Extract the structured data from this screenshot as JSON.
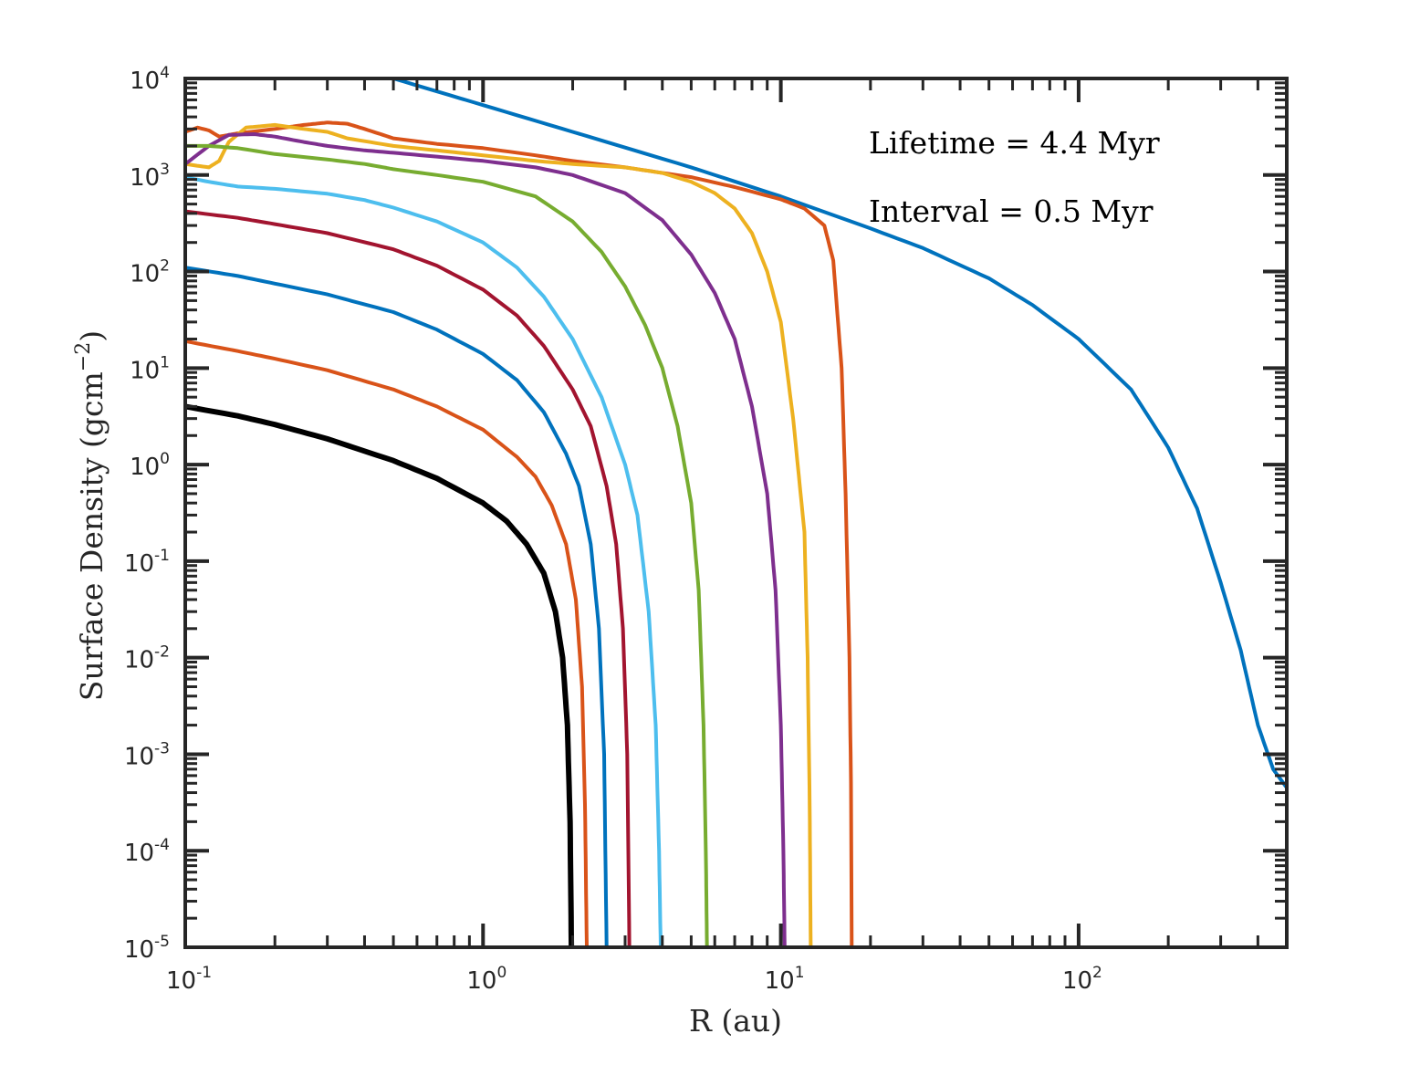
{
  "chart_data": {
    "type": "line",
    "xlabel": "R (au)",
    "ylabel": "Surface Density (gcm",
    "ylabel_exp": "−2",
    "ylabel_close": ")",
    "x_scale": "log",
    "y_scale": "log",
    "xlim": [
      0.1,
      500
    ],
    "ylim": [
      1e-05,
      10000
    ],
    "x_ticks": [
      {
        "base": "10",
        "exp": "-1",
        "value": 0.1
      },
      {
        "base": "10",
        "exp": "0",
        "value": 1
      },
      {
        "base": "10",
        "exp": "1",
        "value": 10
      },
      {
        "base": "10",
        "exp": "2",
        "value": 100
      }
    ],
    "y_ticks": [
      {
        "base": "10",
        "exp": "-5",
        "value": 1e-05
      },
      {
        "base": "10",
        "exp": "-4",
        "value": 0.0001
      },
      {
        "base": "10",
        "exp": "-3",
        "value": 0.001
      },
      {
        "base": "10",
        "exp": "-2",
        "value": 0.01
      },
      {
        "base": "10",
        "exp": "-1",
        "value": 0.1
      },
      {
        "base": "10",
        "exp": "0",
        "value": 1
      },
      {
        "base": "10",
        "exp": "1",
        "value": 10
      },
      {
        "base": "10",
        "exp": "2",
        "value": 100
      },
      {
        "base": "10",
        "exp": "3",
        "value": 1000
      },
      {
        "base": "10",
        "exp": "4",
        "value": 10000
      }
    ],
    "annotations": [
      "Lifetime = 4.4 Myr",
      "Interval = 0.5 Myr"
    ],
    "grid": false,
    "series": [
      {
        "color": "#0072BD",
        "width": 4,
        "points": [
          [
            0.5,
            10000
          ],
          [
            1,
            5300
          ],
          [
            2,
            2800
          ],
          [
            5,
            1200
          ],
          [
            10,
            600
          ],
          [
            20,
            280
          ],
          [
            30,
            175
          ],
          [
            50,
            85
          ],
          [
            70,
            45
          ],
          [
            100,
            20
          ],
          [
            150,
            6
          ],
          [
            200,
            1.5
          ],
          [
            250,
            0.35
          ],
          [
            300,
            0.06
          ],
          [
            350,
            0.012
          ],
          [
            400,
            0.002
          ],
          [
            450,
            0.0007
          ],
          [
            500,
            0.00045
          ]
        ]
      },
      {
        "color": "#D95319",
        "width": 4,
        "points": [
          [
            0.1,
            2800
          ],
          [
            0.11,
            3100
          ],
          [
            0.12,
            2900
          ],
          [
            0.13,
            2500
          ],
          [
            0.15,
            2700
          ],
          [
            0.2,
            3000
          ],
          [
            0.25,
            3300
          ],
          [
            0.3,
            3500
          ],
          [
            0.35,
            3400
          ],
          [
            0.4,
            3000
          ],
          [
            0.5,
            2400
          ],
          [
            0.7,
            2100
          ],
          [
            1,
            1900
          ],
          [
            1.5,
            1600
          ],
          [
            2,
            1400
          ],
          [
            3,
            1200
          ],
          [
            5,
            950
          ],
          [
            7,
            750
          ],
          [
            10,
            560
          ],
          [
            12,
            450
          ],
          [
            14,
            300
          ],
          [
            15,
            130
          ],
          [
            16,
            10
          ],
          [
            16.5,
            0.5
          ],
          [
            17,
            0.01
          ],
          [
            17.2,
            0.0005
          ],
          [
            17.3,
            1e-05
          ]
        ]
      },
      {
        "color": "#EDB120",
        "width": 4,
        "points": [
          [
            0.1,
            1300
          ],
          [
            0.12,
            1200
          ],
          [
            0.13,
            1400
          ],
          [
            0.14,
            2200
          ],
          [
            0.16,
            3100
          ],
          [
            0.2,
            3300
          ],
          [
            0.25,
            3000
          ],
          [
            0.3,
            2800
          ],
          [
            0.35,
            2400
          ],
          [
            0.5,
            2000
          ],
          [
            0.7,
            1800
          ],
          [
            1,
            1600
          ],
          [
            1.5,
            1400
          ],
          [
            2,
            1300
          ],
          [
            3,
            1200
          ],
          [
            4,
            1050
          ],
          [
            5,
            850
          ],
          [
            6,
            650
          ],
          [
            7,
            450
          ],
          [
            8,
            250
          ],
          [
            9,
            100
          ],
          [
            10,
            30
          ],
          [
            11,
            3
          ],
          [
            12,
            0.2
          ],
          [
            12.3,
            0.01
          ],
          [
            12.5,
            0.0003
          ],
          [
            12.6,
            1e-05
          ]
        ]
      },
      {
        "color": "#7E2F8E",
        "width": 4,
        "points": [
          [
            0.1,
            1300
          ],
          [
            0.12,
            2000
          ],
          [
            0.14,
            2600
          ],
          [
            0.17,
            2650
          ],
          [
            0.2,
            2500
          ],
          [
            0.25,
            2200
          ],
          [
            0.3,
            2000
          ],
          [
            0.4,
            1800
          ],
          [
            0.5,
            1700
          ],
          [
            0.7,
            1550
          ],
          [
            1,
            1400
          ],
          [
            1.5,
            1200
          ],
          [
            2,
            1000
          ],
          [
            3,
            650
          ],
          [
            4,
            340
          ],
          [
            5,
            150
          ],
          [
            6,
            60
          ],
          [
            7,
            20
          ],
          [
            8,
            4
          ],
          [
            9,
            0.5
          ],
          [
            9.6,
            0.05
          ],
          [
            10,
            0.002
          ],
          [
            10.2,
            0.0001
          ],
          [
            10.3,
            1e-05
          ]
        ]
      },
      {
        "color": "#77AC30",
        "width": 4,
        "points": [
          [
            0.1,
            2000
          ],
          [
            0.12,
            2000
          ],
          [
            0.15,
            1900
          ],
          [
            0.2,
            1650
          ],
          [
            0.3,
            1450
          ],
          [
            0.4,
            1300
          ],
          [
            0.5,
            1150
          ],
          [
            0.7,
            1000
          ],
          [
            1,
            850
          ],
          [
            1.5,
            600
          ],
          [
            2,
            330
          ],
          [
            2.5,
            160
          ],
          [
            3,
            70
          ],
          [
            3.5,
            28
          ],
          [
            4,
            10
          ],
          [
            4.5,
            2.5
          ],
          [
            5,
            0.4
          ],
          [
            5.3,
            0.05
          ],
          [
            5.5,
            0.002
          ],
          [
            5.6,
            0.0001
          ],
          [
            5.65,
            1e-05
          ]
        ]
      },
      {
        "color": "#4DBEEE",
        "width": 4,
        "points": [
          [
            0.1,
            950
          ],
          [
            0.12,
            850
          ],
          [
            0.15,
            760
          ],
          [
            0.2,
            720
          ],
          [
            0.3,
            640
          ],
          [
            0.4,
            550
          ],
          [
            0.5,
            460
          ],
          [
            0.7,
            330
          ],
          [
            1,
            200
          ],
          [
            1.3,
            110
          ],
          [
            1.6,
            55
          ],
          [
            2,
            20
          ],
          [
            2.5,
            5
          ],
          [
            3,
            1
          ],
          [
            3.3,
            0.3
          ],
          [
            3.6,
            0.03
          ],
          [
            3.8,
            0.002
          ],
          [
            3.9,
            0.0001
          ],
          [
            3.95,
            1e-05
          ]
        ]
      },
      {
        "color": "#A2142F",
        "width": 4,
        "points": [
          [
            0.1,
            420
          ],
          [
            0.15,
            360
          ],
          [
            0.2,
            310
          ],
          [
            0.3,
            250
          ],
          [
            0.5,
            170
          ],
          [
            0.7,
            115
          ],
          [
            1,
            65
          ],
          [
            1.3,
            35
          ],
          [
            1.6,
            17
          ],
          [
            2,
            6
          ],
          [
            2.3,
            2.5
          ],
          [
            2.6,
            0.6
          ],
          [
            2.8,
            0.15
          ],
          [
            2.95,
            0.02
          ],
          [
            3.05,
            0.001
          ],
          [
            3.1,
            1e-05
          ]
        ]
      },
      {
        "color": "#0072BD",
        "width": 4,
        "points": [
          [
            0.1,
            110
          ],
          [
            0.15,
            90
          ],
          [
            0.2,
            75
          ],
          [
            0.3,
            58
          ],
          [
            0.5,
            38
          ],
          [
            0.7,
            25
          ],
          [
            1,
            14
          ],
          [
            1.3,
            7.5
          ],
          [
            1.6,
            3.5
          ],
          [
            1.9,
            1.3
          ],
          [
            2.1,
            0.6
          ],
          [
            2.3,
            0.15
          ],
          [
            2.45,
            0.02
          ],
          [
            2.55,
            0.001
          ],
          [
            2.6,
            1e-05
          ]
        ]
      },
      {
        "color": "#D95319",
        "width": 4,
        "points": [
          [
            0.1,
            19
          ],
          [
            0.15,
            15
          ],
          [
            0.2,
            12.5
          ],
          [
            0.3,
            9.5
          ],
          [
            0.5,
            6
          ],
          [
            0.7,
            4
          ],
          [
            1,
            2.3
          ],
          [
            1.3,
            1.2
          ],
          [
            1.5,
            0.75
          ],
          [
            1.7,
            0.38
          ],
          [
            1.9,
            0.15
          ],
          [
            2.05,
            0.04
          ],
          [
            2.15,
            0.005
          ],
          [
            2.2,
            0.0003
          ],
          [
            2.23,
            1e-05
          ]
        ]
      },
      {
        "color": "#000000",
        "width": 6,
        "points": [
          [
            0.1,
            4
          ],
          [
            0.15,
            3.2
          ],
          [
            0.2,
            2.6
          ],
          [
            0.3,
            1.85
          ],
          [
            0.5,
            1.1
          ],
          [
            0.7,
            0.72
          ],
          [
            1,
            0.4
          ],
          [
            1.2,
            0.26
          ],
          [
            1.4,
            0.15
          ],
          [
            1.6,
            0.075
          ],
          [
            1.75,
            0.03
          ],
          [
            1.85,
            0.01
          ],
          [
            1.92,
            0.002
          ],
          [
            1.96,
            0.0002
          ],
          [
            1.98,
            1e-05
          ]
        ]
      }
    ]
  }
}
